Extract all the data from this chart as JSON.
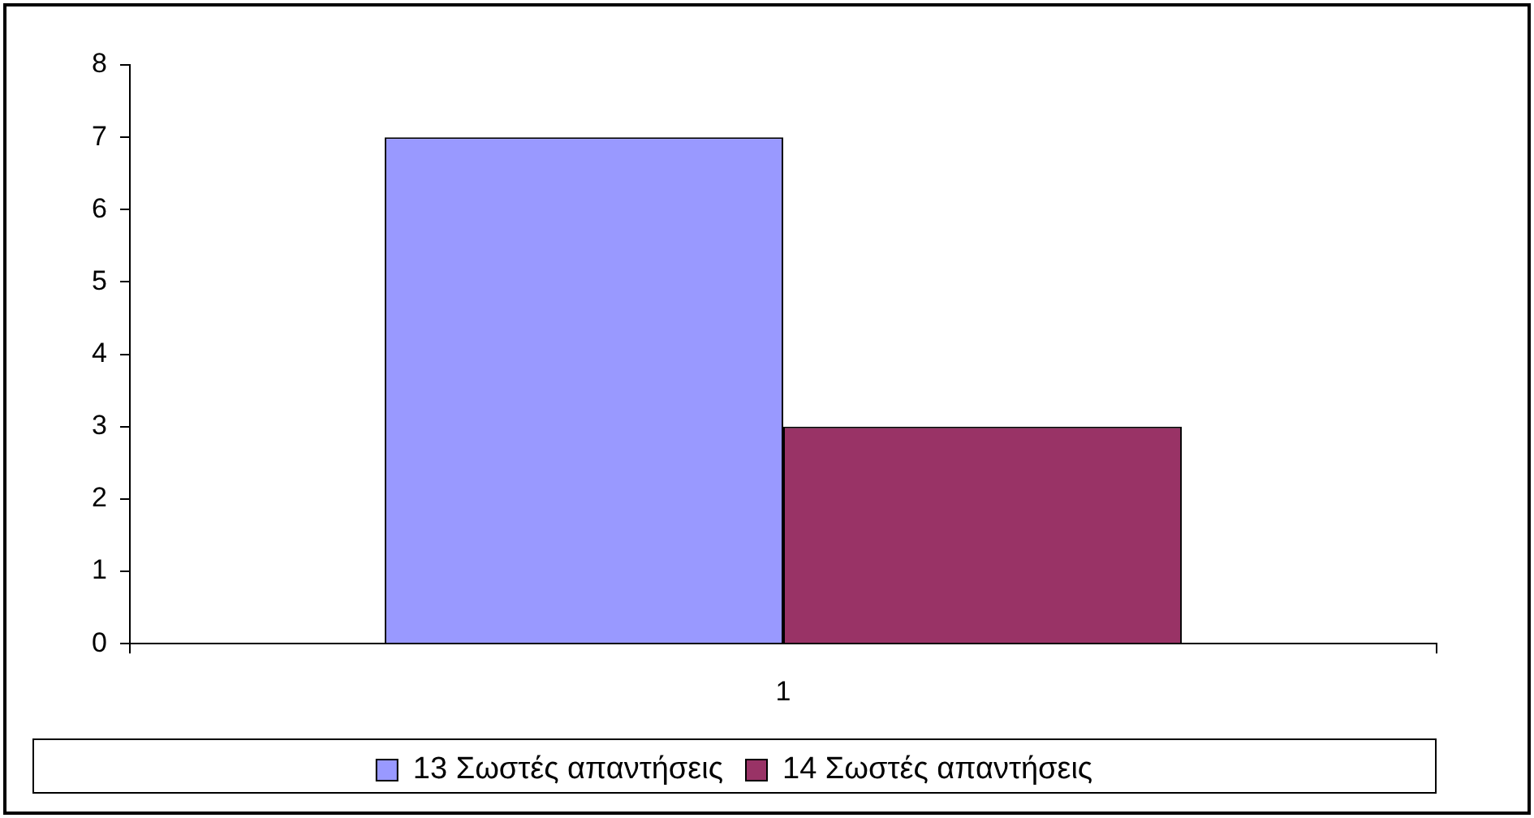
{
  "chart_data": {
    "type": "bar",
    "categories": [
      "1"
    ],
    "series": [
      {
        "name": "13 Σωστές απαντήσεις",
        "color": "#9999ff",
        "values": [
          7
        ]
      },
      {
        "name": "14 Σωστές απαντήσεις",
        "color": "#993366",
        "values": [
          3
        ]
      }
    ],
    "ylim": [
      0,
      8
    ],
    "yticks": [
      0,
      1,
      2,
      3,
      4,
      5,
      6,
      7,
      8
    ],
    "legend": "bottom"
  }
}
